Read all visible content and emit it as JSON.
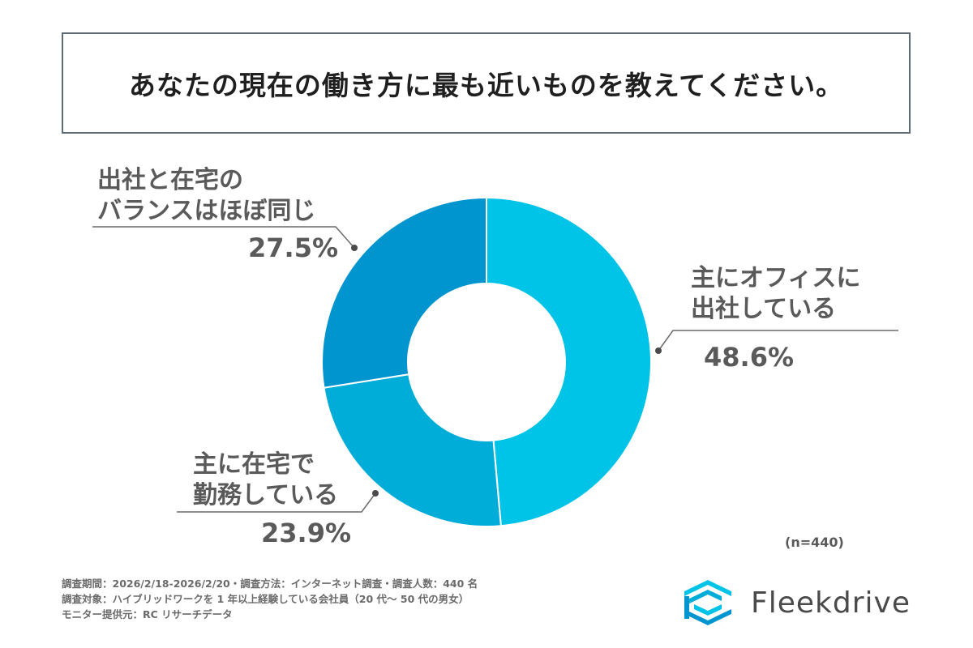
{
  "title": "あなたの現在の働き方に最も近いものを教えてください。",
  "chart_data": {
    "type": "pie",
    "variant": "donut",
    "slices": [
      {
        "label": [
          "主にオフィスに",
          "出社している"
        ],
        "value": 48.6,
        "display": "48.6%",
        "color": "#00c3e8"
      },
      {
        "label": [
          "主に在宅で",
          "勤務している"
        ],
        "value": 23.9,
        "display": "23.9%",
        "color": "#00acd8"
      },
      {
        "label": [
          "出社と在宅の",
          "バランスはほぼ同じ"
        ],
        "value": 27.5,
        "display": "27.5%",
        "color": "#0095cf"
      }
    ],
    "start_angle": "12 o'clock",
    "direction": "clockwise"
  },
  "sample_note": "(n=440)",
  "footer": {
    "line1": "調査期間：2026/2/18-2026/2/20・調査方法：インターネット調査・調査人数：440 名",
    "line2": "調査対象：ハイブリッドワークを 1 年以上経験している会社員（20 代〜 50 代の男女）",
    "line3": "モニター提供元：RC リサーチデータ"
  },
  "logo": {
    "name": "Fleekdrive",
    "colors": [
      "#00c3e8",
      "#0095cf",
      "#00acd8"
    ]
  }
}
